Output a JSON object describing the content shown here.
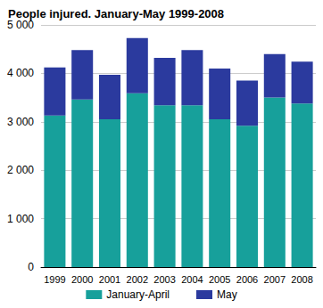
{
  "chart_data": {
    "type": "bar",
    "title": "People injured. January-May 1999-2008",
    "categories": [
      "1999",
      "2000",
      "2001",
      "2002",
      "2003",
      "2004",
      "2005",
      "2006",
      "2007",
      "2008"
    ],
    "series": [
      {
        "name": "January-April",
        "color": "#17a09b",
        "values": [
          3130,
          3460,
          3050,
          3590,
          3340,
          3340,
          3050,
          2920,
          3500,
          3380
        ]
      },
      {
        "name": "May",
        "color": "#2b3a9e",
        "values": [
          990,
          1020,
          920,
          1140,
          980,
          1140,
          1050,
          930,
          900,
          860
        ]
      }
    ],
    "stacked": true,
    "ylim": [
      0,
      5000
    ],
    "yticks": [
      0,
      {
        "value": 1000,
        "label": "1 000"
      },
      {
        "value": 2000,
        "label": "2 000"
      },
      {
        "value": 3000,
        "label": "3 000"
      },
      {
        "value": 4000,
        "label": "4 000"
      },
      {
        "value": 5000,
        "label": "5 000"
      }
    ],
    "grid": true,
    "legend": "bottom"
  }
}
